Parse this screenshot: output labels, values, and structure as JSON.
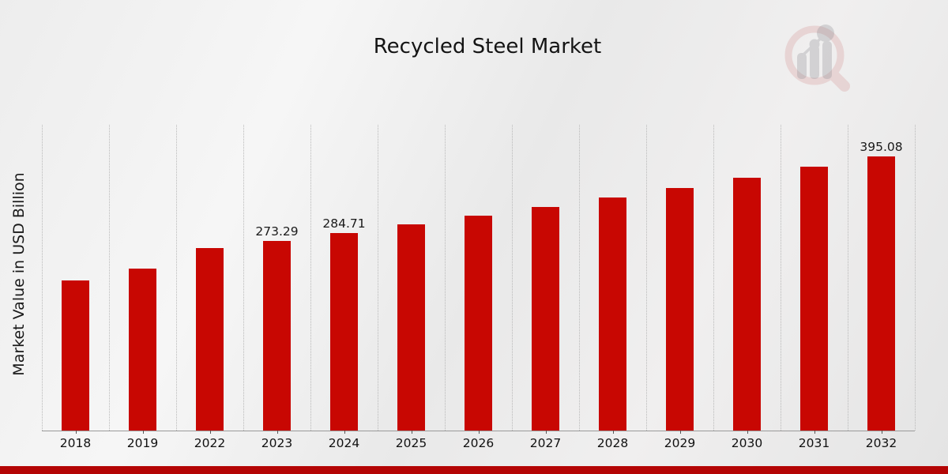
{
  "header": {
    "title": "Recycled Steel Market"
  },
  "y_axis": {
    "label": "Market Value in USD Billion"
  },
  "watermark": {
    "icon": "magnifier-bar-chart-logo",
    "ring_color": "#d98a8a",
    "bar_color": "#9a9aa0"
  },
  "footer": {
    "accent_color": "#b40505"
  },
  "chart_data": {
    "type": "bar",
    "title": "Recycled Steel Market",
    "xlabel": "",
    "ylabel": "Market Value in USD Billion",
    "categories": [
      "2018",
      "2019",
      "2022",
      "2023",
      "2024",
      "2025",
      "2026",
      "2027",
      "2028",
      "2029",
      "2030",
      "2031",
      "2032"
    ],
    "values": [
      216.0,
      233.2,
      262.32,
      273.29,
      284.71,
      296.61,
      309.01,
      321.92,
      335.38,
      349.41,
      364.03,
      379.26,
      395.08
    ],
    "labels_shown": [
      "",
      "",
      "",
      "273.29",
      "284.71",
      "",
      "",
      "",
      "",
      "",
      "",
      "",
      "395.08"
    ],
    "bar_color": "#c80702",
    "ylim": [
      0,
      440
    ],
    "grid": "vertical-dotted",
    "legend": "none"
  }
}
